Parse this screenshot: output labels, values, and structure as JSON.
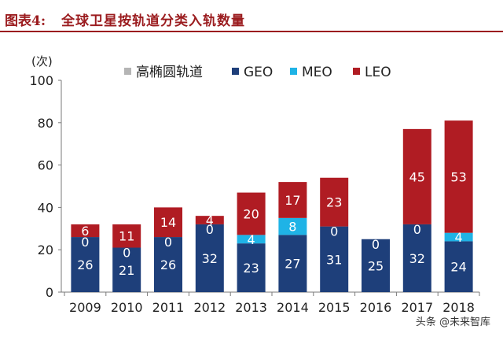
{
  "header": {
    "figure_label": "图表4:",
    "title": "全球卫星按轨道分类入轨数量"
  },
  "watermark": "头条 @未来智库",
  "colors": {
    "heo": "#b5b5b5",
    "geo": "#1e3f7a",
    "meo": "#1fb3e6",
    "leo": "#b01c23",
    "title": "#9b1c1f",
    "axis": "#7a7a7a",
    "bar_label": "#ffffff"
  },
  "chart_data": {
    "type": "bar",
    "stacked": true,
    "unit_label": "(次)",
    "categories": [
      "2009",
      "2010",
      "2011",
      "2012",
      "2013",
      "2014",
      "2015",
      "2016",
      "2017",
      "2018"
    ],
    "series": [
      {
        "name": "高椭圆轨道",
        "key": "heo",
        "values": [
          0,
          0,
          0,
          0,
          0,
          0,
          0,
          0,
          0,
          0
        ]
      },
      {
        "name": "GEO",
        "key": "geo",
        "values": [
          26,
          21,
          26,
          32,
          23,
          27,
          31,
          25,
          32,
          24
        ]
      },
      {
        "name": "MEO",
        "key": "meo",
        "values": [
          0,
          0,
          0,
          0,
          4,
          8,
          0,
          0,
          0,
          4
        ]
      },
      {
        "name": "LEO",
        "key": "leo",
        "values": [
          6,
          11,
          14,
          4,
          20,
          17,
          23,
          0,
          45,
          53
        ]
      }
    ],
    "data_labels": {
      "geo": [
        "26",
        "21",
        "26",
        "32",
        "23",
        "27",
        "31",
        "25",
        "32",
        "24"
      ],
      "meo": [
        "0",
        "0",
        "0",
        "0",
        "4",
        "8",
        "0",
        "0",
        "0",
        "4"
      ],
      "leo": [
        "6",
        "11",
        "14",
        "4",
        "20",
        "17",
        "23",
        "0",
        "45",
        "53"
      ]
    },
    "ylim": [
      0,
      100
    ],
    "yticks": [
      "0",
      "20",
      "40",
      "60",
      "80",
      "100"
    ],
    "legend_position": "top",
    "grid": false
  }
}
